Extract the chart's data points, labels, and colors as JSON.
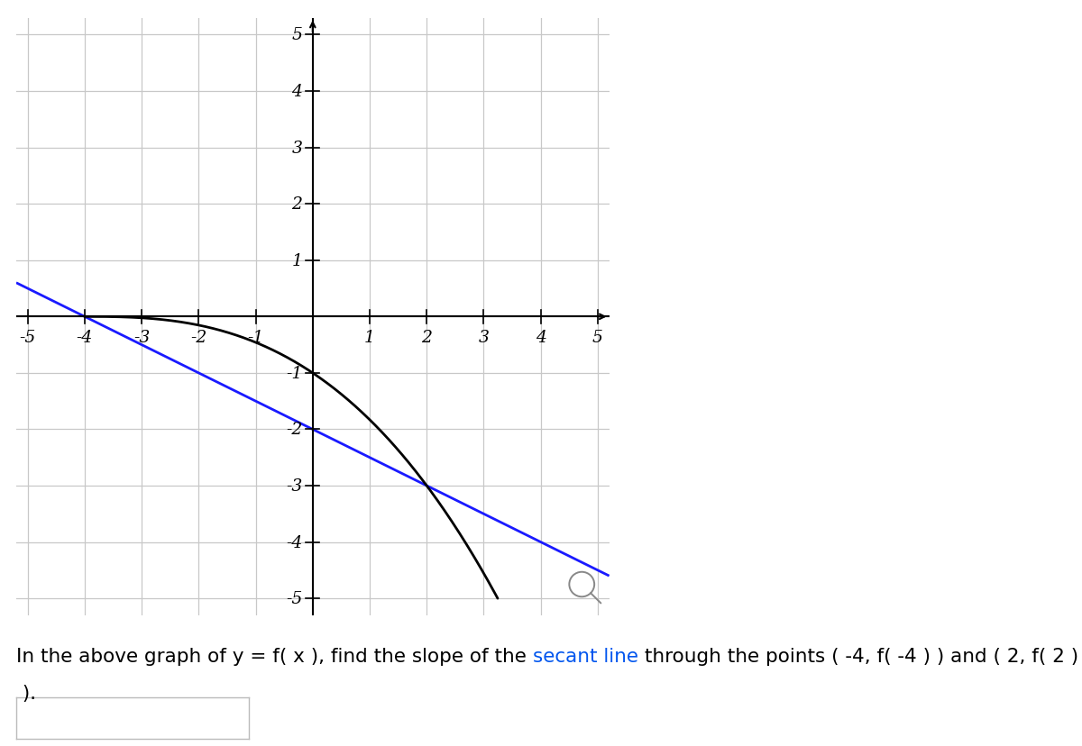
{
  "xlim": [
    -5.2,
    5.2
  ],
  "ylim": [
    -5.3,
    5.3
  ],
  "xticks": [
    -5,
    -4,
    -3,
    -2,
    -1,
    1,
    2,
    3,
    4,
    5
  ],
  "yticks": [
    -5,
    -4,
    -3,
    -2,
    -1,
    1,
    2,
    3,
    4,
    5
  ],
  "grid_color": "#c8c8c8",
  "axis_color": "#000000",
  "curve_color": "#000000",
  "secant_color": "#1a1aff",
  "curve_lw": 2.0,
  "secant_lw": 2.0,
  "point1_x": -4,
  "point1_y": 0,
  "point2_x": 2,
  "point2_y": -3,
  "background_color": "#ffffff",
  "caption_color": "#000000",
  "secant_text_color": "#0055ee",
  "caption_fontsize": 15.5,
  "fig_width": 12.0,
  "fig_height": 8.29,
  "magnifier_x": 4.72,
  "magnifier_y": -4.75,
  "magnifier_r": 0.22
}
